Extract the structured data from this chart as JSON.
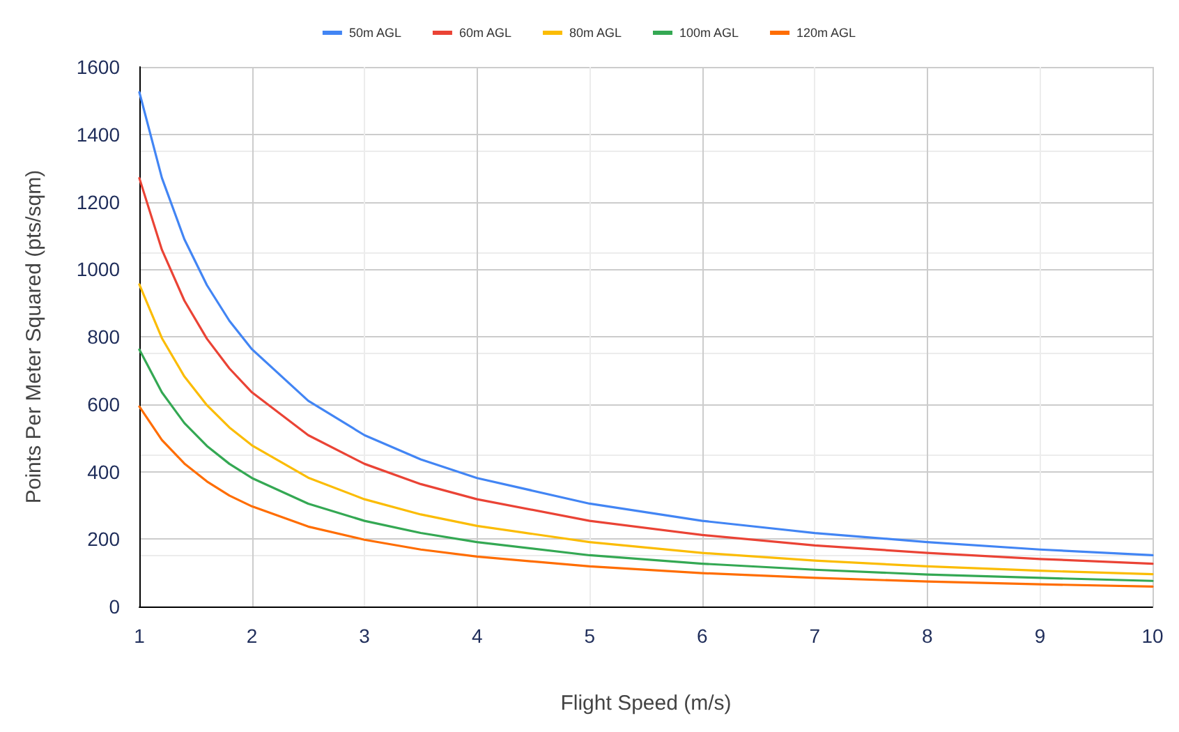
{
  "chart_data": {
    "type": "line",
    "xlabel": "Flight Speed (m/s)",
    "ylabel": "Points Per Meter Squared (pts/sqm)",
    "x": [
      1,
      1.2,
      1.4,
      1.6,
      1.8,
      2,
      2.5,
      3,
      3.5,
      4,
      5,
      6,
      7,
      8,
      9,
      10
    ],
    "series": [
      {
        "name": "50m AGL",
        "color": "#4285f4",
        "values": [
          1525,
          1271,
          1089,
          953,
          847,
          763,
          610,
          508,
          436,
          381,
          305,
          254,
          218,
          191,
          169,
          152
        ]
      },
      {
        "name": "60m AGL",
        "color": "#ea4335",
        "values": [
          1270,
          1058,
          907,
          794,
          706,
          635,
          508,
          423,
          363,
          318,
          254,
          212,
          181,
          159,
          141,
          127
        ]
      },
      {
        "name": "80m AGL",
        "color": "#fbbc04",
        "values": [
          955,
          796,
          682,
          597,
          531,
          478,
          382,
          318,
          273,
          239,
          191,
          159,
          136,
          119,
          106,
          96
        ]
      },
      {
        "name": "100m AGL",
        "color": "#34a853",
        "values": [
          762,
          635,
          544,
          476,
          423,
          381,
          305,
          254,
          218,
          191,
          152,
          127,
          109,
          95,
          85,
          76
        ]
      },
      {
        "name": "120m AGL",
        "color": "#ff6d01",
        "values": [
          593,
          494,
          424,
          371,
          329,
          297,
          237,
          198,
          169,
          148,
          119,
          99,
          85,
          74,
          66,
          59
        ]
      }
    ],
    "xlim": [
      1,
      10
    ],
    "xticks": [
      1,
      2,
      3,
      4,
      5,
      6,
      7,
      8,
      9,
      10
    ],
    "ylim": [
      0,
      1600
    ],
    "yticks": [
      0,
      200,
      400,
      600,
      800,
      1000,
      1200,
      1400,
      1600
    ],
    "grid": true,
    "legend": "top",
    "marker": "none",
    "line_style": "solid"
  }
}
